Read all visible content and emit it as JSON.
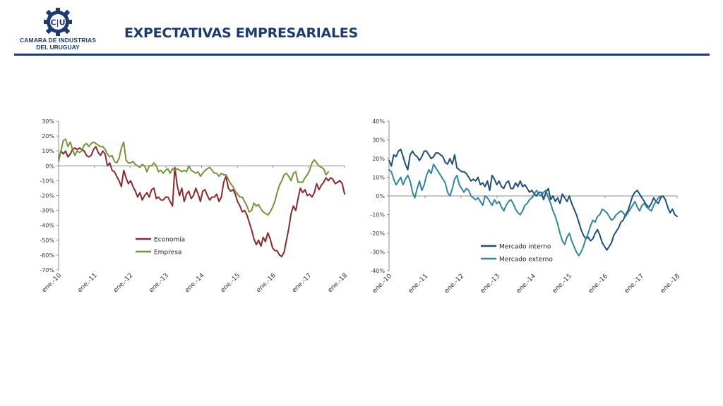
{
  "header": {
    "title": "EXPECTATIVAS EMPRESARIALES",
    "logo_text": "C|U",
    "org_line1": "CAMARA DE INDUSTRIAS",
    "org_line2": "DEL URUGUAY"
  },
  "colors": {
    "brand": "#1f3a6e",
    "economia": "#8b2a2e",
    "empresa": "#77933c",
    "mercado_interno": "#1f4e79",
    "mercado_externo": "#31859c"
  },
  "chart_data": [
    {
      "type": "line",
      "x_ticks": [
        "ene.-10",
        "ene.-11",
        "ene.-12",
        "ene.-13",
        "ene.-14",
        "ene.-15",
        "ene.-16",
        "ene.-17",
        "ene.-18"
      ],
      "ylim": [
        -70,
        30
      ],
      "y_ticks": [
        30,
        20,
        10,
        0,
        -10,
        -20,
        -30,
        -40,
        -50,
        -60,
        -70
      ],
      "y_tick_labels": [
        "30%",
        "20%",
        "10%",
        "0%",
        "-10%",
        "-20%",
        "-30%",
        "-40%",
        "-50%",
        "-60%",
        "-70%"
      ],
      "legend_position": "lower-left",
      "series": [
        {
          "name": "Economía",
          "color": "#8b2a2e",
          "values": [
            5,
            10,
            8,
            10,
            6,
            8,
            11,
            12,
            11,
            12,
            11,
            10,
            7,
            6,
            7,
            11,
            13,
            9,
            7,
            10,
            8,
            0,
            2,
            -3,
            -4,
            -7,
            -10,
            -14,
            -3,
            -8,
            -12,
            -10,
            -14,
            -17,
            -21,
            -18,
            -23,
            -20,
            -18,
            -21,
            -16,
            -15,
            -22,
            -21,
            -23,
            -23,
            -21,
            -21,
            -24,
            -27,
            -1,
            -13,
            -20,
            -15,
            -24,
            -19,
            -17,
            -22,
            -20,
            -15,
            -19,
            -24,
            -17,
            -16,
            -20,
            -23,
            -21,
            -21,
            -19,
            -24,
            -21,
            -11,
            -7,
            -15,
            -17,
            -16,
            -19,
            -24,
            -27,
            -31,
            -30,
            -33,
            -38,
            -43,
            -49,
            -53,
            -50,
            -54,
            -48,
            -51,
            -45,
            -49,
            -55,
            -57,
            -57,
            -60,
            -61,
            -58,
            -50,
            -42,
            -32,
            -27,
            -30,
            -22,
            -15,
            -18,
            -16,
            -20,
            -19,
            -21,
            -18,
            -12,
            -16,
            -13,
            -11,
            -8,
            -10,
            -8,
            -9,
            -12,
            -11,
            -10,
            -12,
            -19
          ]
        },
        {
          "name": "Empresa",
          "color": "#77933c",
          "values": [
            3,
            10,
            17,
            18,
            13,
            16,
            11,
            7,
            10,
            9,
            10,
            14,
            15,
            13,
            15,
            16,
            15,
            14,
            13,
            13,
            11,
            8,
            6,
            7,
            3,
            2,
            5,
            12,
            16,
            4,
            2,
            2,
            3,
            1,
            0,
            -1,
            1,
            0,
            -4,
            0,
            0,
            2,
            0,
            -4,
            -3,
            -5,
            -3,
            -2,
            -5,
            -2,
            -3,
            -2,
            -3,
            -4,
            -3,
            -4,
            0,
            -3,
            -4,
            -5,
            -4,
            -7,
            -5,
            -3,
            -2,
            -1,
            -3,
            -5,
            -5,
            -7,
            -5,
            -6,
            -6,
            -9,
            -12,
            -14,
            -17,
            -19,
            -21,
            -21,
            -24,
            -27,
            -31,
            -30,
            -25,
            -27,
            -26,
            -29,
            -31,
            -32,
            -33,
            -31,
            -28,
            -24,
            -18,
            -13,
            -10,
            -6,
            -5,
            -7,
            -10,
            -5,
            -4,
            -11,
            -11,
            -11,
            -8,
            -6,
            -3,
            2,
            4,
            2,
            0,
            -1,
            -2,
            -6,
            -4
          ]
        }
      ]
    },
    {
      "type": "line",
      "x_ticks": [
        "ene.-10",
        "ene.-11",
        "ene.-12",
        "ene.-13",
        "ene.-14",
        "ene.-15",
        "ene.-16",
        "ene.-17",
        "ene.-18"
      ],
      "ylim": [
        -40,
        40
      ],
      "y_ticks": [
        40,
        30,
        20,
        10,
        0,
        -10,
        -20,
        -30,
        -40
      ],
      "y_tick_labels": [
        "40%",
        "30%",
        "20%",
        "10%",
        "0%",
        "-10%",
        "-20%",
        "-30%",
        "-40%"
      ],
      "legend_position": "lower-left",
      "series": [
        {
          "name": "Mercado interno",
          "color": "#1f4e79",
          "values": [
            19,
            16,
            22,
            21,
            24,
            25,
            21,
            17,
            14,
            22,
            24,
            22,
            21,
            19,
            21,
            24,
            24,
            22,
            20,
            21,
            23,
            23,
            22,
            21,
            18,
            17,
            20,
            17,
            22,
            15,
            14,
            13,
            13,
            12,
            10,
            8,
            9,
            8,
            10,
            6,
            7,
            5,
            8,
            3,
            11,
            9,
            6,
            8,
            5,
            4,
            7,
            8,
            4,
            4,
            7,
            5,
            8,
            5,
            6,
            4,
            2,
            3,
            1,
            0,
            2,
            2,
            -2,
            2,
            4,
            -2,
            0,
            -3,
            -1,
            -4,
            1,
            -1,
            -3,
            0,
            -4,
            -7,
            -10,
            -14,
            -18,
            -21,
            -23,
            -22,
            -24,
            -23,
            -20,
            -18,
            -21,
            -25,
            -27,
            -29,
            -27,
            -25,
            -21,
            -19,
            -17,
            -14,
            -13,
            -10,
            -8,
            -4,
            0,
            2,
            3,
            1,
            -1,
            -3,
            -5,
            -6,
            -4,
            -1,
            -3,
            -4,
            -1,
            0,
            -2,
            -6,
            -9,
            -7,
            -10,
            -11
          ]
        },
        {
          "name": "Mercado externo",
          "color": "#31859c",
          "values": [
            14,
            13,
            9,
            6,
            8,
            10,
            6,
            9,
            11,
            8,
            2,
            -1,
            4,
            8,
            3,
            6,
            11,
            14,
            12,
            17,
            15,
            13,
            11,
            9,
            7,
            2,
            0,
            4,
            9,
            11,
            6,
            4,
            2,
            4,
            3,
            0,
            -1,
            -2,
            -1,
            -3,
            -5,
            0,
            -1,
            -3,
            -5,
            -2,
            -4,
            -3,
            -6,
            -8,
            -5,
            -3,
            -2,
            -4,
            -7,
            -9,
            -10,
            -8,
            -5,
            -4,
            -2,
            -1,
            1,
            3,
            1,
            0,
            2,
            3,
            -1,
            -4,
            -8,
            -11,
            -15,
            -20,
            -24,
            -26,
            -22,
            -20,
            -24,
            -27,
            -30,
            -32,
            -30,
            -27,
            -23,
            -20,
            -16,
            -13,
            -14,
            -11,
            -10,
            -7,
            -8,
            -9,
            -11,
            -13,
            -12,
            -10,
            -9,
            -8,
            -9,
            -11,
            -9,
            -7,
            -5,
            -3,
            -6,
            -8,
            -5,
            -4,
            -6,
            -7,
            -8,
            -5,
            -3,
            -1,
            0
          ]
        }
      ]
    }
  ]
}
